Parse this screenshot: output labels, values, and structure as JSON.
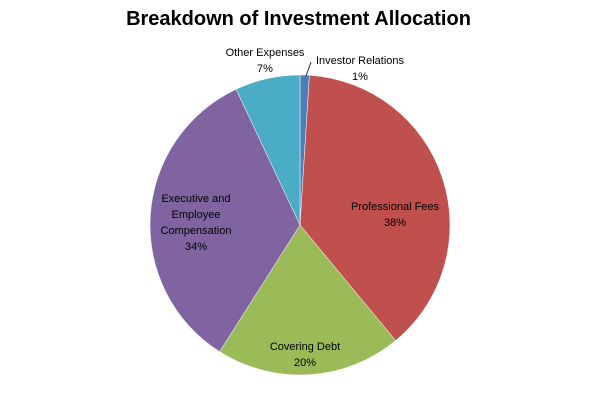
{
  "chart_data": {
    "type": "pie",
    "title": "Breakdown of Investment Allocation",
    "categories": [
      "Investor Relations",
      "Professional Fees",
      "Covering Debt",
      "Executive and Employee Compensation",
      "Other Expenses"
    ],
    "values": [
      1,
      38,
      20,
      34,
      7
    ],
    "value_labels": [
      "1%",
      "38%",
      "20%",
      "34%",
      "7%"
    ],
    "colors": [
      "#4a7ebb",
      "#c0504d",
      "#9bbb59",
      "#8064a2",
      "#4bacc6"
    ]
  }
}
